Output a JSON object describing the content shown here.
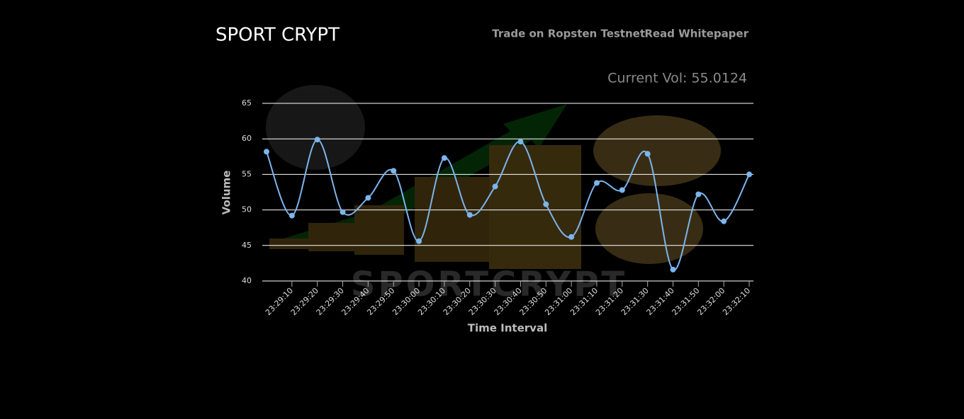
{
  "header": {
    "brand": "SPORT CRYPT",
    "links": [
      "Trade on Ropsten Testnet",
      "Read Whitepaper"
    ]
  },
  "current_vol": "Current Vol: 55.0124",
  "chart_data": {
    "type": "line",
    "categories": [
      null,
      "23:29:10",
      "23:29:20",
      "23:29:30",
      "23:29:40",
      "23:29:50",
      "23:30:00",
      "23:30:10",
      "23:30:20",
      "23:30:30",
      "23:30:40",
      "23:30:50",
      "23:31:00",
      "23:31:10",
      "23:31:20",
      "23:31:30",
      "23:31:40",
      "23:31:50",
      "23:32:00",
      "23:32:10"
    ],
    "series": [
      {
        "name": "Volume",
        "color": "#7cb5ec",
        "values": [
          58.2,
          49.2,
          59.9,
          49.7,
          51.7,
          55.5,
          45.6,
          57.3,
          49.3,
          53.3,
          59.6,
          50.8,
          46.2,
          53.8,
          52.8,
          57.9,
          41.6,
          52.2,
          48.4,
          55.0
        ]
      }
    ],
    "xlabel": "Time Interval",
    "ylabel": "Volume",
    "ylim": [
      40,
      65
    ],
    "yticks": [
      40,
      45,
      50,
      55,
      60,
      65
    ],
    "grid": true
  }
}
